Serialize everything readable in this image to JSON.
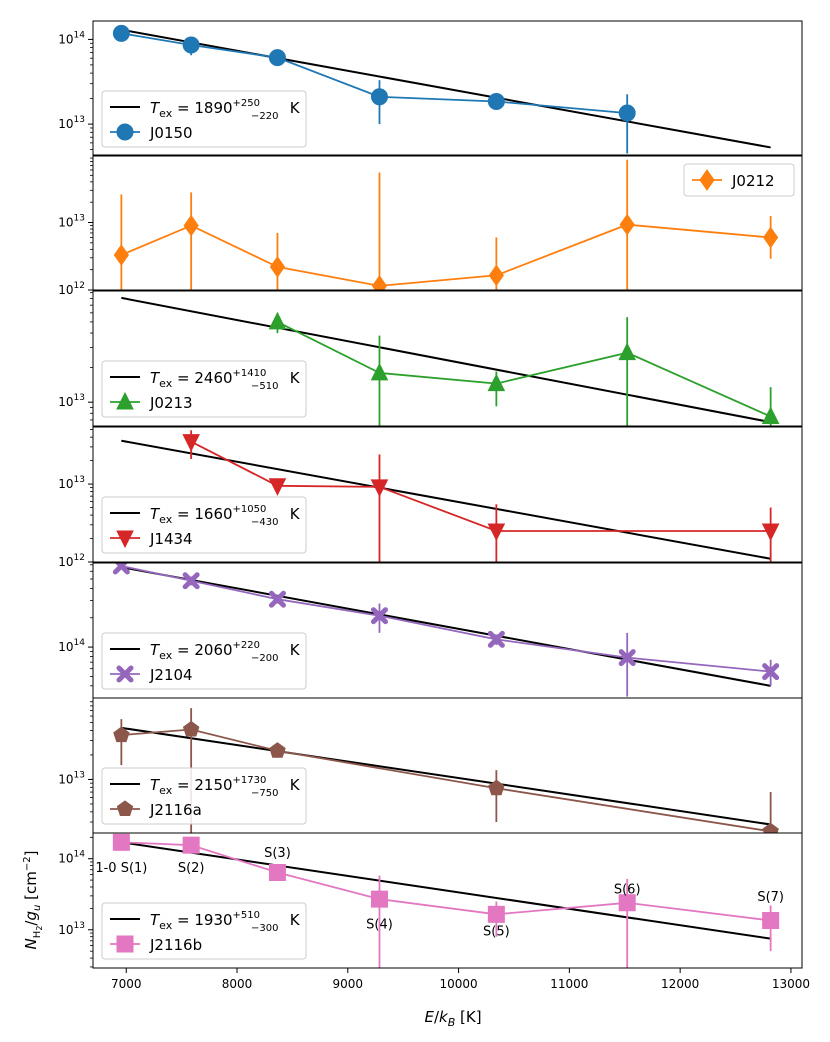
{
  "chart_data": {
    "type": "scatter",
    "xlabel": "E/k_B [K]",
    "ylabel": "N_H2/g_u [cm^-2]",
    "xlim": [
      6700,
      13100
    ],
    "xticks": [
      7000,
      8000,
      9000,
      10000,
      11000,
      12000,
      13000
    ],
    "xscale": "linear",
    "yscale": "log",
    "grid": false,
    "energies": [
      6956,
      7586,
      8365,
      9286,
      10341,
      11522,
      12817
    ],
    "line_labels": [
      {
        "text": "1-0 S(1)",
        "x": 6956,
        "y": 65000000000000.0
      },
      {
        "text": "S(2)",
        "x": 7586,
        "y": 65000000000000.0
      },
      {
        "text": "S(3)",
        "x": 8365,
        "y": 105000000000000.0
      },
      {
        "text": "S(4)",
        "x": 9286,
        "y": 10500000000000.0
      },
      {
        "text": "S(5)",
        "x": 10341,
        "y": 8300000000000.0
      },
      {
        "text": "S(6)",
        "x": 11522,
        "y": 32500000000000.0
      },
      {
        "text": "S(7)",
        "x": 12817,
        "y": 25500000000000.0
      }
    ],
    "panels": [
      {
        "name": "J0150",
        "color": "#1f77b4",
        "marker": "circle",
        "ylim": [
          4200000000000.0,
          165000000000000.0
        ],
        "yticks": [
          10000000000000.0,
          100000000000000.0
        ],
        "ytick_labels": [
          "10^13",
          "10^14"
        ],
        "legend_loc": "lower left",
        "fit": {
          "tex_label": "1890",
          "err_up": "+250",
          "err_down": "−220",
          "x": [
            6956,
            12817
          ],
          "y": [
            130000000000000.0,
            5300000000000.0
          ]
        },
        "points": [
          {
            "x": 6956,
            "y": 118000000000000.0,
            "lo": 112000000000000.0,
            "hi": 124000000000000.0
          },
          {
            "x": 7586,
            "y": 86000000000000.0,
            "lo": 65000000000000.0,
            "hi": 100000000000000.0
          },
          {
            "x": 8365,
            "y": 61000000000000.0,
            "lo": 54000000000000.0,
            "hi": 68000000000000.0
          },
          {
            "x": 9286,
            "y": 21000000000000.0,
            "lo": 10000000000000.0,
            "hi": 33000000000000.0
          },
          {
            "x": 10341,
            "y": 18500000000000.0,
            "lo": 16500000000000.0,
            "hi": 20500000000000.0
          },
          {
            "x": 11522,
            "y": 13500000000000.0,
            "lo": 4500000000000.0,
            "hi": 22500000000000.0
          }
        ]
      },
      {
        "name": "J0212",
        "color": "#ff7f0e",
        "marker": "diamond",
        "ylim": [
          1000000000000.0,
          100000000000000.0
        ],
        "yticks": [
          1000000000000.0,
          10000000000000.0
        ],
        "ytick_labels": [
          "10^12",
          "10^13"
        ],
        "legend_loc": "upper right",
        "fit": null,
        "points": [
          {
            "x": 6956,
            "y": 3300000000000.0,
            "lo": 1000000000000.0,
            "hi": 26000000000000.0
          },
          {
            "x": 7586,
            "y": 9000000000000.0,
            "lo": 1000000000000.0,
            "hi": 28000000000000.0
          },
          {
            "x": 8365,
            "y": 2200000000000.0,
            "lo": 1000000000000.0,
            "hi": 7000000000000.0
          },
          {
            "x": 9286,
            "y": 1150000000000.0,
            "lo": 1000000000000.0,
            "hi": 55000000000000.0
          },
          {
            "x": 10341,
            "y": 1650000000000.0,
            "lo": 1000000000000.0,
            "hi": 6000000000000.0
          },
          {
            "x": 11522,
            "y": 9300000000000.0,
            "lo": 1000000000000.0,
            "hi": 85000000000000.0
          },
          {
            "x": 12817,
            "y": 6000000000000.0,
            "lo": 2900000000000.0,
            "hi": 12500000000000.0
          }
        ]
      },
      {
        "name": "J0213",
        "color": "#2ca02c",
        "marker": "triangle-up",
        "ylim": [
          6200000000000.0,
          93000000000000.0
        ],
        "yticks": [
          10000000000000.0
        ],
        "ytick_labels": [
          "10^13"
        ],
        "legend_loc": "lower left",
        "fit": {
          "tex_label": "2460",
          "err_up": "+1410",
          "err_down": "−510",
          "x": [
            6956,
            12817
          ],
          "y": [
            81000000000000.0,
            6700000000000.0
          ]
        },
        "points": [
          {
            "x": 8365,
            "y": 50000000000000.0,
            "lo": 40000000000000.0,
            "hi": 60000000000000.0
          },
          {
            "x": 9286,
            "y": 18000000000000.0,
            "lo": 6200000000000.0,
            "hi": 38000000000000.0
          },
          {
            "x": 10341,
            "y": 14500000000000.0,
            "lo": 9200000000000.0,
            "hi": 18500000000000.0
          },
          {
            "x": 11522,
            "y": 27000000000000.0,
            "lo": 6200000000000.0,
            "hi": 55000000000000.0
          },
          {
            "x": 12817,
            "y": 7500000000000.0,
            "lo": 6200000000000.0,
            "hi": 13500000000000.0
          }
        ]
      },
      {
        "name": "J1434",
        "color": "#d62728",
        "marker": "triangle-down",
        "ylim": [
          1000000000000.0,
          54000000000000.0
        ],
        "yticks": [
          1000000000000.0,
          10000000000000.0
        ],
        "ytick_labels": [
          "10^12",
          "10^13"
        ],
        "legend_loc": "lower left",
        "fit": {
          "tex_label": "1660",
          "err_up": "+1050",
          "err_down": "−430",
          "x": [
            6956,
            12817
          ],
          "y": [
            36000000000000.0,
            1100000000000.0
          ]
        },
        "points": [
          {
            "x": 7586,
            "y": 35000000000000.0,
            "lo": 21000000000000.0,
            "hi": 49000000000000.0
          },
          {
            "x": 8365,
            "y": 9500000000000.0,
            "lo": 8500000000000.0,
            "hi": 10500000000000.0
          },
          {
            "x": 9286,
            "y": 9200000000000.0,
            "lo": 1000000000000.0,
            "hi": 24000000000000.0
          },
          {
            "x": 10341,
            "y": 2500000000000.0,
            "lo": 1000000000000.0,
            "hi": 5500000000000.0
          },
          {
            "x": 12817,
            "y": 2500000000000.0,
            "lo": 1000000000000.0,
            "hi": 5000000000000.0
          }
        ]
      },
      {
        "name": "J2104",
        "color": "#9467bd",
        "marker": "x-filled",
        "ylim": [
          30000000000000.0,
          730000000000000.0
        ],
        "yticks": [
          100000000000000.0
        ],
        "ytick_labels": [
          "10^14"
        ],
        "legend_loc": "lower left",
        "fit": {
          "tex_label": "2060",
          "err_up": "+220",
          "err_down": "−200",
          "x": [
            6956,
            12817
          ],
          "y": [
            660000000000000.0,
            40000000000000.0
          ]
        },
        "points": [
          {
            "x": 6956,
            "y": 680000000000000.0,
            "lo": 630000000000000.0,
            "hi": 720000000000000.0
          },
          {
            "x": 7586,
            "y": 480000000000000.0,
            "lo": 430000000000000.0,
            "hi": 530000000000000.0
          },
          {
            "x": 8365,
            "y": 310000000000000.0,
            "lo": 280000000000000.0,
            "hi": 340000000000000.0
          },
          {
            "x": 9286,
            "y": 210000000000000.0,
            "lo": 140000000000000.0,
            "hi": 280000000000000.0
          },
          {
            "x": 10341,
            "y": 120000000000000.0,
            "lo": 105000000000000.0,
            "hi": 135000000000000.0
          },
          {
            "x": 11522,
            "y": 78000000000000.0,
            "lo": 31000000000000.0,
            "hi": 140000000000000.0
          },
          {
            "x": 12817,
            "y": 56000000000000.0,
            "lo": 40000000000000.0,
            "hi": 74000000000000.0
          }
        ]
      },
      {
        "name": "J2116a",
        "color": "#8c564b",
        "marker": "pentagon",
        "ylim": [
          2200000000000.0,
          100000000000000.0
        ],
        "yticks": [
          10000000000000.0
        ],
        "ytick_labels": [
          "10^13"
        ],
        "legend_loc": "lower left",
        "fit": {
          "tex_label": "2150",
          "err_up": "+1730",
          "err_down": "−750",
          "x": [
            6956,
            12817
          ],
          "y": [
            43000000000000.0,
            2800000000000.0
          ]
        },
        "points": [
          {
            "x": 6956,
            "y": 35000000000000.0,
            "lo": 15000000000000.0,
            "hi": 55000000000000.0
          },
          {
            "x": 7586,
            "y": 41000000000000.0,
            "lo": 2200000000000.0,
            "hi": 75000000000000.0
          },
          {
            "x": 8365,
            "y": 22500000000000.0,
            "lo": 18500000000000.0,
            "hi": 26500000000000.0
          },
          {
            "x": 10341,
            "y": 7800000000000.0,
            "lo": 3000000000000.0,
            "hi": 13000000000000.0
          },
          {
            "x": 12817,
            "y": 2300000000000.0,
            "lo": 2200000000000.0,
            "hi": 7000000000000.0
          }
        ]
      },
      {
        "name": "J2116b",
        "color": "#e377c2",
        "marker": "square",
        "ylim": [
          2900000000000.0,
          230000000000000.0
        ],
        "yticks": [
          10000000000000.0,
          100000000000000.0
        ],
        "ytick_labels": [
          "10^13",
          "10^14"
        ],
        "legend_loc": "lower left",
        "fit": {
          "tex_label": "1930",
          "err_up": "+510",
          "err_down": "−300",
          "x": [
            6956,
            12817
          ],
          "y": [
            170000000000000.0,
            7500000000000.0
          ]
        },
        "points": [
          {
            "x": 6956,
            "y": 170000000000000.0,
            "lo": 160000000000000.0,
            "hi": 180000000000000.0
          },
          {
            "x": 7586,
            "y": 155000000000000.0,
            "lo": 135000000000000.0,
            "hi": 175000000000000.0
          },
          {
            "x": 8365,
            "y": 64000000000000.0,
            "lo": 59000000000000.0,
            "hi": 69000000000000.0
          },
          {
            "x": 9286,
            "y": 27000000000000.0,
            "lo": 2900000000000.0,
            "hi": 58000000000000.0
          },
          {
            "x": 10341,
            "y": 16500000000000.0,
            "lo": 8000000000000.0,
            "hi": 25000000000000.0
          },
          {
            "x": 11522,
            "y": 24000000000000.0,
            "lo": 2900000000000.0,
            "hi": 52000000000000.0
          },
          {
            "x": 12817,
            "y": 13500000000000.0,
            "lo": 5000000000000.0,
            "hi": 22000000000000.0
          }
        ]
      }
    ]
  }
}
